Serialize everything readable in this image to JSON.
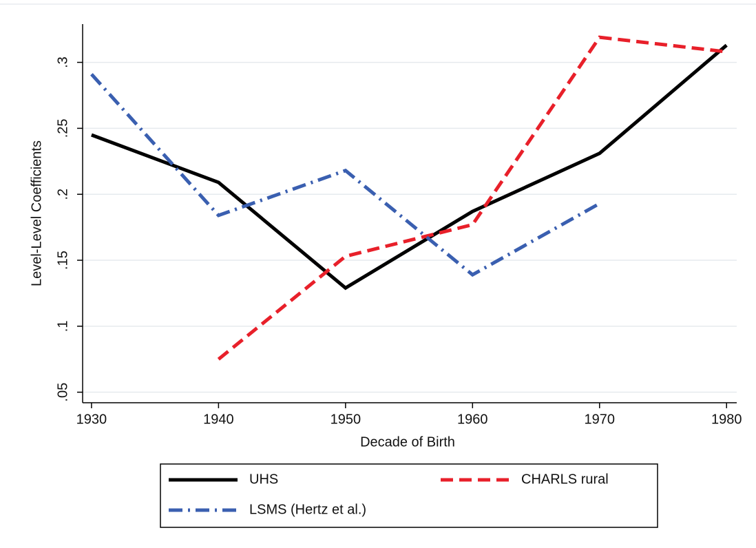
{
  "chart_data": {
    "type": "line",
    "x_label": "Decade of Birth",
    "y_label": "Level-Level Coefficients",
    "x": [
      1930,
      1940,
      1950,
      1960,
      1970,
      1980
    ],
    "series": [
      {
        "name": "UHS",
        "color": "#000000",
        "line_style": "solid",
        "values": [
          0.245,
          0.209,
          0.129,
          0.187,
          0.231,
          0.313
        ]
      },
      {
        "name": "CHARLS rural",
        "color": "#e8202a",
        "line_style": "dash",
        "values": [
          null,
          0.075,
          0.153,
          0.177,
          0.319,
          0.308
        ]
      },
      {
        "name": "LSMS (Hertz et al.)",
        "color": "#3a5fb0",
        "line_style": "dashdot",
        "values": [
          0.291,
          0.184,
          0.218,
          0.139,
          0.193,
          null
        ]
      }
    ],
    "xlim": [
      1929.3,
      1980.8
    ],
    "ylim": [
      0.042,
      0.329
    ],
    "xticks": [
      1930,
      1940,
      1950,
      1960,
      1970,
      1980
    ],
    "yticks": [
      {
        "value": 0.05,
        "label": ".05"
      },
      {
        "value": 0.1,
        "label": ".1"
      },
      {
        "value": 0.15,
        "label": ".15"
      },
      {
        "value": 0.2,
        "label": ".2"
      },
      {
        "value": 0.25,
        "label": ".25"
      },
      {
        "value": 0.3,
        "label": ".3"
      }
    ],
    "grid": true
  }
}
